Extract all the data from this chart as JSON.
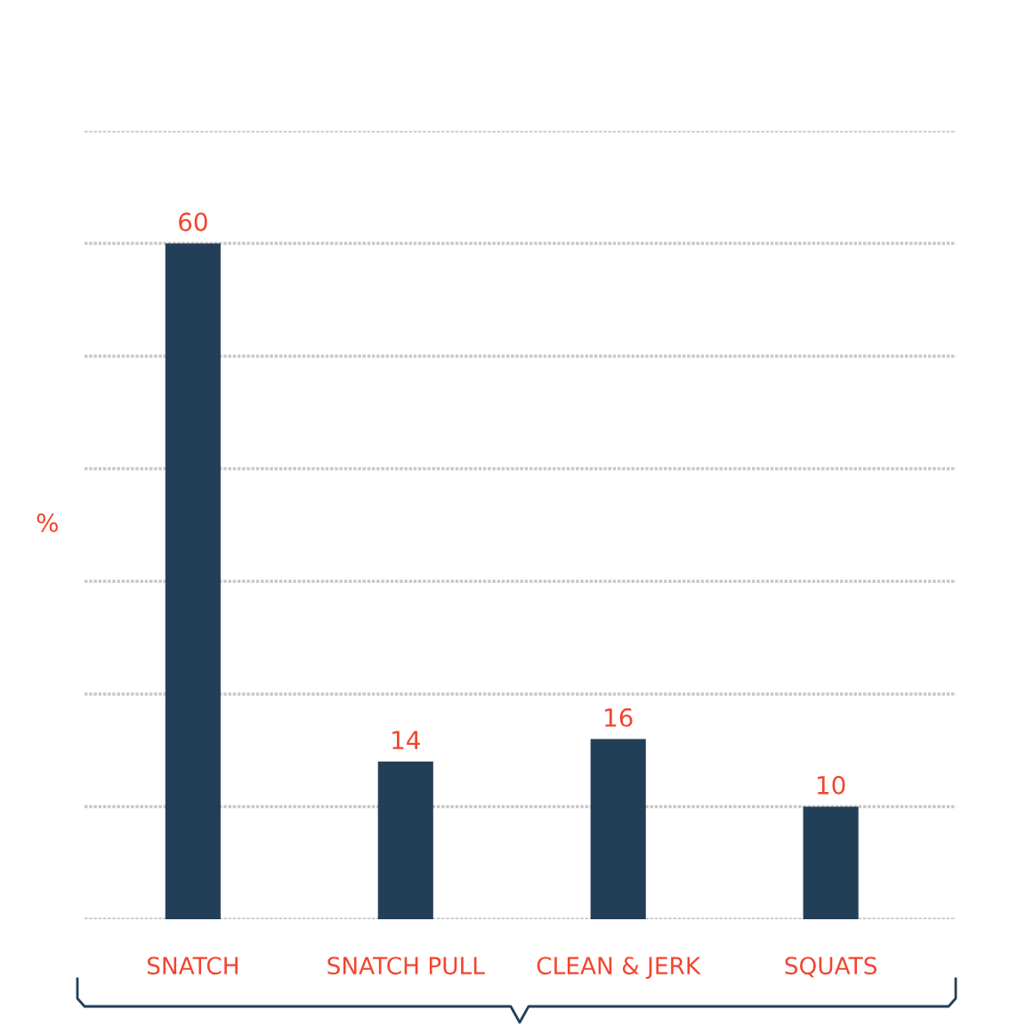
{
  "chart_data": {
    "type": "bar",
    "ylabel": "%",
    "categories": [
      "SNATCH",
      "SNATCH PULL",
      "CLEAN & JERK",
      "SQUATS"
    ],
    "values": [
      60,
      14,
      16,
      10
    ],
    "color": "#233f58",
    "ylim": [
      0,
      70
    ],
    "yticks": [
      {
        "value": 0,
        "label": null
      },
      {
        "value": 10,
        "label": null
      },
      {
        "value": 20,
        "label": null
      },
      {
        "value": 30,
        "label": null
      },
      {
        "value": 40,
        "label": null
      },
      {
        "value": 50,
        "label": null
      },
      {
        "value": 60,
        "label": null
      },
      {
        "value": 70,
        "label": null
      }
    ],
    "tick_labels": "x",
    "grid": "y",
    "data_labels": true,
    "legend": false
  }
}
